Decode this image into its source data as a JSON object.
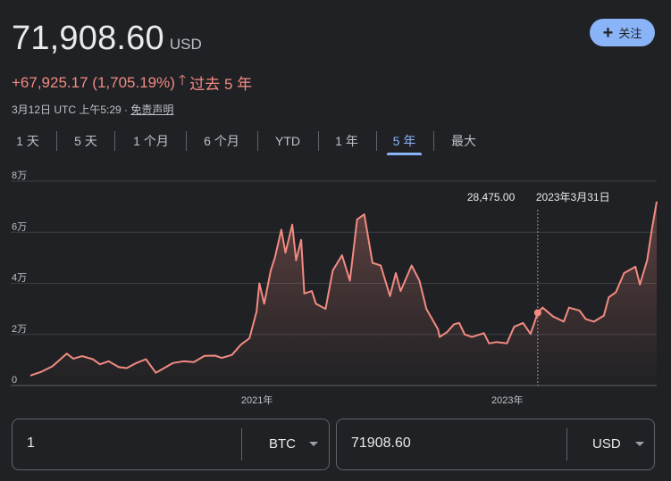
{
  "header": {
    "price": "71,908.60",
    "currency": "USD",
    "change": "+67,925.17 (1,705.19%)",
    "change_period": "过去 5 年",
    "timestamp": "3月12日 UTC 上午5:29 · ",
    "disclaimer": "免责声明",
    "follow_label": "关注"
  },
  "tabs": [
    {
      "label": "1 天",
      "active": false
    },
    {
      "label": "5 天",
      "active": false
    },
    {
      "label": "1 个月",
      "active": false
    },
    {
      "label": "6 个月",
      "active": false
    },
    {
      "label": "YTD",
      "active": false
    },
    {
      "label": "1 年",
      "active": false
    },
    {
      "label": "5 年",
      "active": true
    },
    {
      "label": "最大",
      "active": false
    }
  ],
  "chart_data": {
    "type": "line",
    "y_tick_labels": [
      "0",
      "2万",
      "4万",
      "6万",
      "8万"
    ],
    "y_ticks": [
      0,
      20000,
      40000,
      60000,
      80000
    ],
    "ylim": [
      0,
      80000
    ],
    "x_tick_labels": [
      "2021年",
      "2023年"
    ],
    "x_ticks": [
      "2021-01-01",
      "2023-01-01"
    ],
    "xlim": [
      "2019-03-12",
      "2024-03-12"
    ],
    "grid": true,
    "line_color": "#f28b82",
    "tooltip": {
      "value": "28,475.00",
      "date": "2023年3月31日",
      "x": "2023-03-31",
      "y": 28475
    },
    "series": [
      {
        "points": [
          [
            "2019-03-12",
            3900
          ],
          [
            "2019-04-10",
            5200
          ],
          [
            "2019-05-15",
            7500
          ],
          [
            "2019-06-26",
            12500
          ],
          [
            "2019-07-15",
            10500
          ],
          [
            "2019-08-10",
            11500
          ],
          [
            "2019-09-10",
            10300
          ],
          [
            "2019-10-01",
            8300
          ],
          [
            "2019-10-26",
            9500
          ],
          [
            "2019-11-25",
            7200
          ],
          [
            "2019-12-18",
            6800
          ],
          [
            "2020-01-15",
            8800
          ],
          [
            "2020-02-12",
            10300
          ],
          [
            "2020-03-12",
            5000
          ],
          [
            "2020-04-01",
            6500
          ],
          [
            "2020-05-01",
            8800
          ],
          [
            "2020-06-01",
            9500
          ],
          [
            "2020-07-01",
            9200
          ],
          [
            "2020-08-01",
            11600
          ],
          [
            "2020-09-01",
            11700
          ],
          [
            "2020-09-20",
            10800
          ],
          [
            "2020-10-20",
            12000
          ],
          [
            "2020-11-15",
            16000
          ],
          [
            "2020-12-10",
            18500
          ],
          [
            "2020-12-31",
            29000
          ],
          [
            "2021-01-08",
            40000
          ],
          [
            "2021-01-22",
            32000
          ],
          [
            "2021-02-10",
            45000
          ],
          [
            "2021-02-22",
            50000
          ],
          [
            "2021-03-13",
            61000
          ],
          [
            "2021-03-25",
            52000
          ],
          [
            "2021-04-14",
            63000
          ],
          [
            "2021-04-25",
            49000
          ],
          [
            "2021-05-10",
            57000
          ],
          [
            "2021-05-19",
            36000
          ],
          [
            "2021-06-10",
            37000
          ],
          [
            "2021-06-22",
            32000
          ],
          [
            "2021-07-20",
            30000
          ],
          [
            "2021-08-10",
            45000
          ],
          [
            "2021-09-06",
            51000
          ],
          [
            "2021-09-29",
            41000
          ],
          [
            "2021-10-20",
            65000
          ],
          [
            "2021-11-10",
            67000
          ],
          [
            "2021-12-04",
            48000
          ],
          [
            "2021-12-28",
            47000
          ],
          [
            "2022-01-24",
            35000
          ],
          [
            "2022-02-10",
            44000
          ],
          [
            "2022-02-24",
            37000
          ],
          [
            "2022-03-28",
            47000
          ],
          [
            "2022-04-20",
            41000
          ],
          [
            "2022-05-10",
            30000
          ],
          [
            "2022-06-13",
            22000
          ],
          [
            "2022-06-18",
            19000
          ],
          [
            "2022-07-10",
            21000
          ],
          [
            "2022-07-30",
            24000
          ],
          [
            "2022-08-14",
            24500
          ],
          [
            "2022-08-30",
            20000
          ],
          [
            "2022-09-20",
            19000
          ],
          [
            "2022-10-25",
            20500
          ],
          [
            "2022-11-09",
            16500
          ],
          [
            "2022-11-30",
            17000
          ],
          [
            "2022-12-31",
            16500
          ],
          [
            "2023-01-21",
            23000
          ],
          [
            "2023-02-16",
            24500
          ],
          [
            "2023-03-10",
            20200
          ],
          [
            "2023-03-31",
            28475
          ],
          [
            "2023-04-14",
            30500
          ],
          [
            "2023-05-15",
            27000
          ],
          [
            "2023-06-15",
            25000
          ],
          [
            "2023-06-30",
            30500
          ],
          [
            "2023-07-31",
            29300
          ],
          [
            "2023-08-18",
            26000
          ],
          [
            "2023-09-11",
            25000
          ],
          [
            "2023-10-10",
            27400
          ],
          [
            "2023-10-24",
            34500
          ],
          [
            "2023-11-14",
            36500
          ],
          [
            "2023-12-08",
            44000
          ],
          [
            "2024-01-10",
            46500
          ],
          [
            "2024-01-23",
            39500
          ],
          [
            "2024-02-13",
            49000
          ],
          [
            "2024-02-28",
            62000
          ],
          [
            "2024-03-12",
            72000
          ]
        ]
      }
    ]
  },
  "converter": {
    "left_amount": "1",
    "left_unit": "BTC",
    "right_amount": "71908.60",
    "right_unit": "USD"
  }
}
